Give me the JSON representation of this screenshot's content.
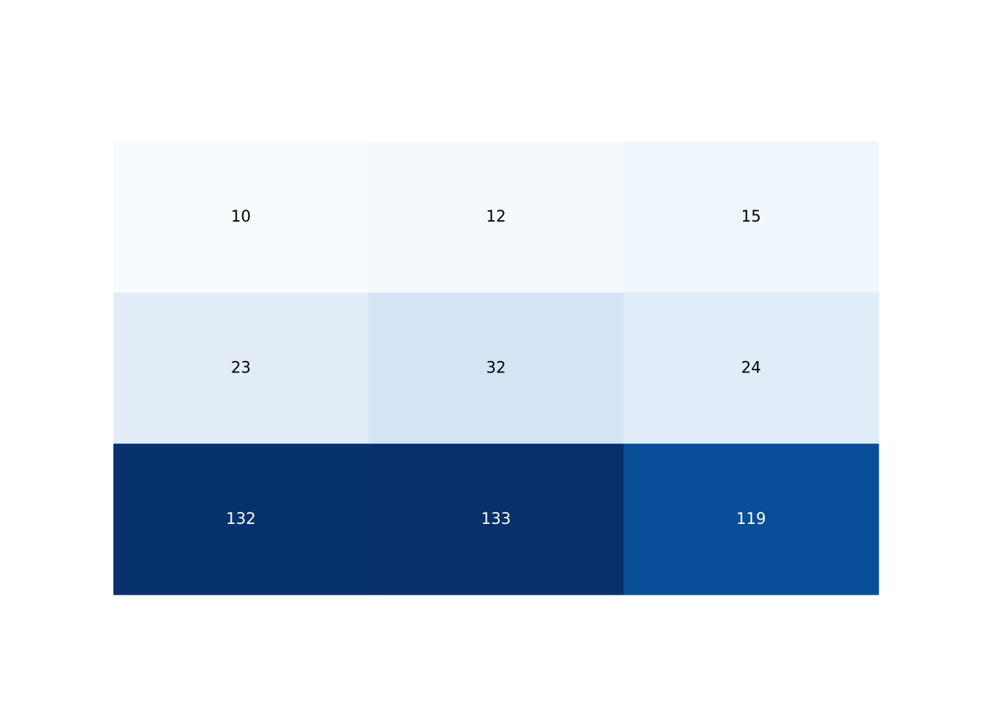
{
  "chart_data": {
    "type": "heatmap",
    "title": "",
    "xlabel": "",
    "ylabel": "",
    "rows": [
      [
        10,
        12,
        15
      ],
      [
        23,
        32,
        24
      ],
      [
        132,
        133,
        119
      ]
    ],
    "cell_labels": [
      [
        "10",
        "12",
        "15"
      ],
      [
        "23",
        "32",
        "24"
      ],
      [
        "132",
        "133",
        "119"
      ]
    ],
    "colorscale": "Blues",
    "color_range": [
      10,
      133
    ],
    "colors": {
      "low": "#f7fbff",
      "high": "#08306b",
      "label_dark": "#000000",
      "label_light": "#ffffff"
    },
    "grid": false,
    "legend": "none",
    "axes_visible": false
  }
}
